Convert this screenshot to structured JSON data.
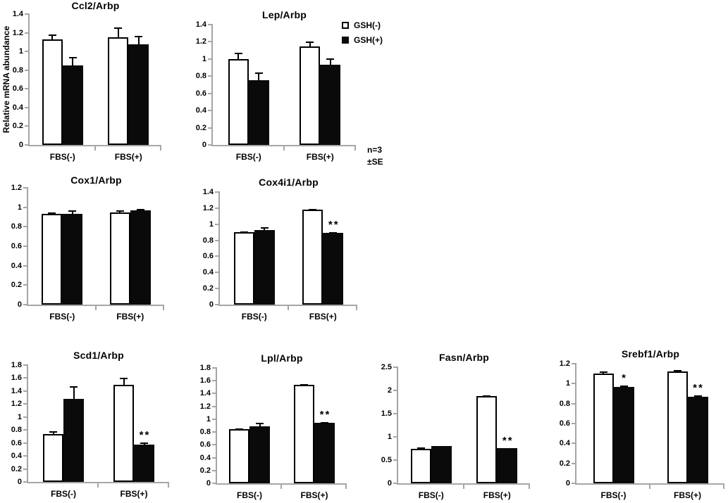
{
  "figure": {
    "ylabel": "Relative mRNA abundance",
    "note_lines": [
      "n=3",
      "±SE"
    ],
    "legend": {
      "items": [
        {
          "label": "GSH(-)",
          "fill": "#ffffff",
          "border": "#000000"
        },
        {
          "label": "GSH(+)",
          "fill": "#0a0a0a",
          "border": "#0a0a0a"
        }
      ]
    },
    "colors": {
      "axis": "#a6a6a6",
      "text": "#000000",
      "open_bar_fill": "#ffffff",
      "solid_bar_fill": "#0a0a0a"
    }
  },
  "chart_data": [
    {
      "type": "bar",
      "title": "Ccl2/Arbp",
      "ylabel": "Relative mRNA abundance",
      "categories": [
        "FBS(-)",
        "FBS(+)"
      ],
      "ylim": [
        0,
        1.4
      ],
      "yticks": [
        "0",
        "0.2",
        "0.4",
        "0.6",
        "0.8",
        "1",
        "1.2",
        "1.4"
      ],
      "grid": false,
      "series": [
        {
          "name": "GSH(-)",
          "fill": "#ffffff",
          "values": [
            1.13,
            1.15
          ],
          "errors": [
            0.05,
            0.11
          ],
          "sig": [
            "",
            ""
          ]
        },
        {
          "name": "GSH(+)",
          "fill": "#0a0a0a",
          "values": [
            0.85,
            1.08
          ],
          "errors": [
            0.09,
            0.09
          ],
          "sig": [
            "",
            ""
          ]
        }
      ]
    },
    {
      "type": "bar",
      "title": "Lep/Arbp",
      "categories": [
        "FBS(-)",
        "FBS(+)"
      ],
      "ylim": [
        0,
        1.4
      ],
      "yticks": [
        "0",
        "0.2",
        "0.4",
        "0.6",
        "0.8",
        "1",
        "1.2",
        "1.4"
      ],
      "grid": false,
      "series": [
        {
          "name": "GSH(-)",
          "fill": "#ffffff",
          "values": [
            1.0,
            1.15
          ],
          "errors": [
            0.07,
            0.05
          ],
          "sig": [
            "",
            ""
          ]
        },
        {
          "name": "GSH(+)",
          "fill": "#0a0a0a",
          "values": [
            0.75,
            0.93
          ],
          "errors": [
            0.09,
            0.08
          ],
          "sig": [
            "",
            ""
          ]
        }
      ]
    },
    {
      "type": "bar",
      "title": "Cox1/Arbp",
      "categories": [
        "FBS(-)",
        "FBS(+)"
      ],
      "ylim": [
        0,
        1.2
      ],
      "yticks": [
        "0",
        "0.2",
        "0.4",
        "0.6",
        "0.8",
        "1",
        "1.2"
      ],
      "grid": false,
      "series": [
        {
          "name": "GSH(-)",
          "fill": "#ffffff",
          "values": [
            0.93,
            0.95
          ],
          "errors": [
            0.015,
            0.02
          ],
          "sig": [
            "",
            ""
          ]
        },
        {
          "name": "GSH(+)",
          "fill": "#0a0a0a",
          "values": [
            0.93,
            0.97
          ],
          "errors": [
            0.04,
            0.015
          ],
          "sig": [
            "",
            ""
          ]
        }
      ]
    },
    {
      "type": "bar",
      "title": "Cox4i1/Arbp",
      "categories": [
        "FBS(-)",
        "FBS(+)"
      ],
      "ylim": [
        0,
        1.4
      ],
      "yticks": [
        "0",
        "0.2",
        "0.4",
        "0.6",
        "0.8",
        "1",
        "1.2",
        "1.4"
      ],
      "grid": false,
      "series": [
        {
          "name": "GSH(-)",
          "fill": "#ffffff",
          "values": [
            0.9,
            1.18
          ],
          "errors": [
            0.01,
            0.01
          ],
          "sig": [
            "",
            ""
          ]
        },
        {
          "name": "GSH(+)",
          "fill": "#0a0a0a",
          "values": [
            0.93,
            0.89
          ],
          "errors": [
            0.03,
            0.01
          ],
          "sig": [
            "",
            "**"
          ]
        }
      ]
    },
    {
      "type": "bar",
      "title": "Scd1/Arbp",
      "categories": [
        "FBS(-)",
        "FBS(+)"
      ],
      "ylim": [
        0,
        1.8
      ],
      "yticks": [
        "0",
        "0.2",
        "0.4",
        "0.6",
        "0.8",
        "1",
        "1.2",
        "1.4",
        "1.6",
        "1.8"
      ],
      "grid": false,
      "series": [
        {
          "name": "GSH(-)",
          "fill": "#ffffff",
          "values": [
            0.74,
            1.5
          ],
          "errors": [
            0.04,
            0.1
          ],
          "sig": [
            "",
            ""
          ]
        },
        {
          "name": "GSH(+)",
          "fill": "#0a0a0a",
          "values": [
            1.28,
            0.58
          ],
          "errors": [
            0.2,
            0.025
          ],
          "sig": [
            "",
            "**"
          ]
        }
      ]
    },
    {
      "type": "bar",
      "title": "Lpl/Arbp",
      "categories": [
        "FBS(-)",
        "FBS(+)"
      ],
      "ylim": [
        0,
        1.8
      ],
      "yticks": [
        "0",
        "0.2",
        "0.4",
        "0.6",
        "0.8",
        "1",
        "1.2",
        "1.4",
        "1.6",
        "1.8"
      ],
      "grid": false,
      "series": [
        {
          "name": "GSH(-)",
          "fill": "#ffffff",
          "values": [
            0.84,
            1.54
          ],
          "errors": [
            0.02,
            0.01
          ],
          "sig": [
            "",
            ""
          ]
        },
        {
          "name": "GSH(+)",
          "fill": "#0a0a0a",
          "values": [
            0.89,
            0.94
          ],
          "errors": [
            0.05,
            0.015
          ],
          "sig": [
            "",
            "**"
          ]
        }
      ]
    },
    {
      "type": "bar",
      "title": "Fasn/Arbp",
      "categories": [
        "FBS(-)",
        "FBS(+)"
      ],
      "ylim": [
        0,
        2.5
      ],
      "yticks": [
        "0",
        "0.5",
        "1",
        "1.5",
        "2",
        "2.5"
      ],
      "grid": false,
      "series": [
        {
          "name": "GSH(-)",
          "fill": "#ffffff",
          "values": [
            0.74,
            1.88
          ],
          "errors": [
            0.03,
            0.02
          ],
          "sig": [
            "",
            ""
          ]
        },
        {
          "name": "GSH(+)",
          "fill": "#0a0a0a",
          "values": [
            0.81,
            0.76
          ],
          "errors": [
            0,
            0
          ],
          "sig": [
            "",
            "**"
          ]
        }
      ]
    },
    {
      "type": "bar",
      "title": "Srebf1/Arbp",
      "categories": [
        "FBS(-)",
        "FBS(+)"
      ],
      "ylim": [
        0,
        1.2
      ],
      "yticks": [
        "0",
        "0.2",
        "0.4",
        "0.6",
        "0.8",
        "1",
        "1.2"
      ],
      "grid": false,
      "series": [
        {
          "name": "GSH(-)",
          "fill": "#ffffff",
          "values": [
            1.1,
            1.12
          ],
          "errors": [
            0.02,
            0.015
          ],
          "sig": [
            "",
            ""
          ]
        },
        {
          "name": "GSH(+)",
          "fill": "#0a0a0a",
          "values": [
            0.97,
            0.87
          ],
          "errors": [
            0.01,
            0.01
          ],
          "sig": [
            "*",
            "**"
          ]
        }
      ]
    }
  ]
}
